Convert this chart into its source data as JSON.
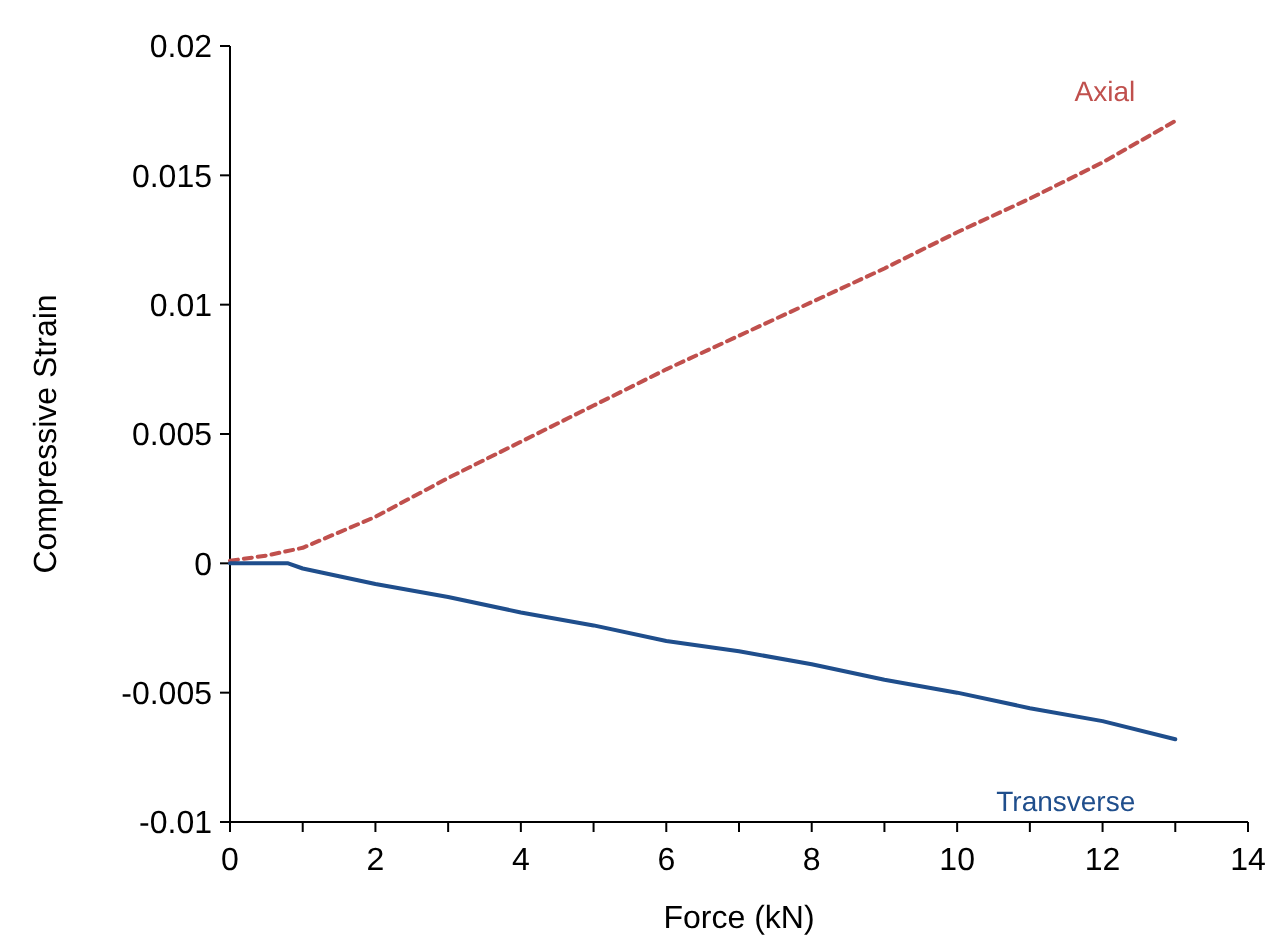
{
  "chart_data": {
    "type": "line",
    "xlabel": "Force (kN)",
    "ylabel": "Compressive Strain",
    "xlim": [
      0,
      14
    ],
    "ylim": [
      -0.01,
      0.02
    ],
    "xticks": [
      0,
      {
        "value": 1,
        "label": null
      },
      2,
      {
        "value": 3,
        "label": null
      },
      4,
      {
        "value": 5,
        "label": null
      },
      6,
      {
        "value": 7,
        "label": null
      },
      8,
      {
        "value": 9,
        "label": null
      },
      10,
      {
        "value": 11,
        "label": null
      },
      12,
      {
        "value": 13,
        "label": null
      },
      14
    ],
    "yticks": [
      -0.01,
      -0.005,
      0,
      0.005,
      0.01,
      0.015,
      0.02
    ],
    "grid": false,
    "marker": "none",
    "series": [
      {
        "name": "Axial",
        "color": "#c0504d",
        "line_style": "dashed",
        "x": [
          0,
          0.5,
          1,
          1.5,
          2,
          3,
          4,
          5,
          6,
          7,
          8,
          9,
          10,
          11,
          12,
          13
        ],
        "values": [
          0.0001,
          0.0003,
          0.0006,
          0.0012,
          0.0018,
          0.0033,
          0.0047,
          0.0061,
          0.0075,
          0.0088,
          0.0101,
          0.0114,
          0.0128,
          0.0141,
          0.0155,
          0.0171
        ]
      },
      {
        "name": "Transverse",
        "color": "#1f4e8c",
        "line_style": "solid",
        "x": [
          0,
          0.5,
          0.8,
          1,
          1.5,
          2,
          3,
          4,
          5,
          6,
          7,
          8,
          9,
          10,
          11,
          12,
          13
        ],
        "values": [
          0,
          0,
          0,
          -0.0002,
          -0.0005,
          -0.0008,
          -0.0013,
          -0.0019,
          -0.0024,
          -0.003,
          -0.0034,
          -0.0039,
          -0.0045,
          -0.005,
          -0.0056,
          -0.0061,
          -0.0068
        ]
      }
    ]
  }
}
